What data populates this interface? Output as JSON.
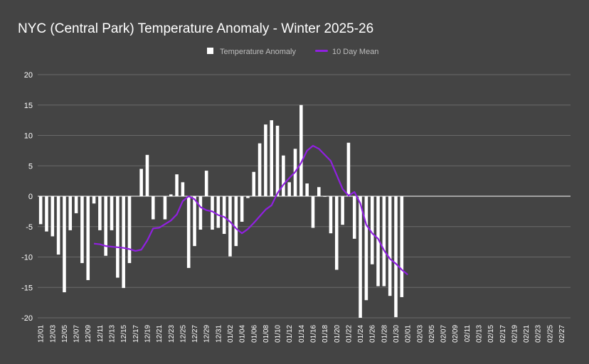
{
  "chart_data": {
    "type": "bar",
    "title": "NYC (Central Park) Temperature Anomaly - Winter 2025-26",
    "xlabel": "",
    "ylabel": "",
    "ylim": [
      -20,
      20
    ],
    "yticks": [
      20,
      15,
      10,
      5,
      0,
      -5,
      -10,
      -15,
      -20
    ],
    "grid": true,
    "legend_position": "top-center",
    "x_tick_labels": [
      "12/01",
      "12/03",
      "12/05",
      "12/07",
      "12/09",
      "12/11",
      "12/13",
      "12/15",
      "12/17",
      "12/19",
      "12/21",
      "12/23",
      "12/25",
      "12/27",
      "12/29",
      "12/31",
      "01/02",
      "01/04",
      "01/06",
      "01/08",
      "01/10",
      "01/12",
      "01/14",
      "01/16",
      "01/18",
      "01/20",
      "01/22",
      "01/24",
      "01/26",
      "01/28",
      "01/30",
      "02/01",
      "02/03",
      "02/05",
      "02/07",
      "02/09",
      "02/11",
      "02/13",
      "02/15",
      "02/17",
      "02/19",
      "02/21",
      "02/23",
      "02/25",
      "02/27"
    ],
    "x_count": 90,
    "series": [
      {
        "name": "Temperature Anomaly",
        "type": "bar",
        "color": "#ffffff",
        "values": [
          -4.6,
          -5.8,
          -6.6,
          -9.6,
          -15.8,
          -5.6,
          -2.8,
          -11,
          -13.8,
          -1.2,
          -5.6,
          -9.8,
          -5.6,
          -13.4,
          -15.1,
          -11,
          0,
          4.5,
          6.8,
          -3.8,
          0,
          -3.8,
          0.3,
          3.6,
          2.3,
          -11.8,
          -8.2,
          -5.5,
          4.2,
          -5.5,
          -5.2,
          -6.2,
          -9.9,
          -8.2,
          -4.2,
          -0.3,
          4,
          8.7,
          11.8,
          12.5,
          11.6,
          6.7,
          2.3,
          7.8,
          15,
          2.1,
          -5.2,
          1.5,
          -0.1,
          -6.1,
          -12.1,
          -4.7,
          8.8,
          -7,
          -20,
          -17.1,
          -11.2,
          -14.8,
          -14.8,
          -16.4,
          -19.9,
          -16.6
        ]
      },
      {
        "name": "10 Day Mean",
        "type": "line",
        "color": "#9020e0",
        "start_index": 9,
        "values": [
          -7.8,
          -7.9,
          -8.2,
          -8.3,
          -8.4,
          -8.5,
          -8.7,
          -9,
          -8.8,
          -7.3,
          -5.3,
          -5.2,
          -4.6,
          -4,
          -3,
          -0.8,
          0,
          -0.5,
          -1.8,
          -2.3,
          -2.5,
          -3.1,
          -3.4,
          -4.2,
          -5.3,
          -6.1,
          -5.4,
          -4.4,
          -3.3,
          -2.2,
          -1.5,
          0.5,
          1.9,
          3,
          4,
          5.5,
          7.5,
          8.3,
          7.8,
          6.8,
          5.8,
          3.5,
          1.2,
          0.1,
          0.7,
          -1.2,
          -4.7,
          -6.1,
          -7,
          -8.9,
          -10.3,
          -11.1,
          -12.1,
          -12.9
        ]
      }
    ]
  }
}
